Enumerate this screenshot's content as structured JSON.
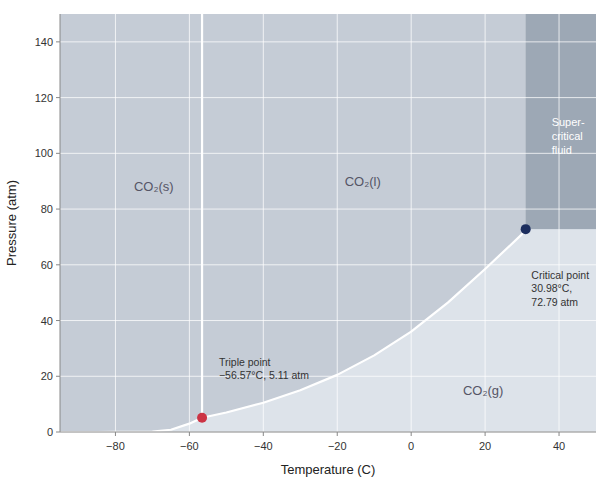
{
  "chart_data": {
    "type": "line",
    "xlabel": "Temperature (C)",
    "ylabel": "Pressure (atm)",
    "xlim": [
      -95,
      50
    ],
    "ylim": [
      0,
      150
    ],
    "xticks": [
      {
        "value": -80,
        "label": "−80"
      },
      {
        "value": -60,
        "label": "−60"
      },
      {
        "value": -40,
        "label": "−40"
      },
      {
        "value": -20,
        "label": "−20"
      },
      0,
      20,
      40
    ],
    "yticks": [
      0,
      20,
      40,
      60,
      80,
      100,
      120,
      140
    ],
    "grid": true,
    "series": [
      {
        "color": "#ffffff",
        "x": [
          -95,
          -90,
          -85,
          -80,
          -75,
          -70,
          -65,
          -60,
          -56.57
        ],
        "values": [
          0.0,
          0.001,
          0.004,
          0.012,
          0.04,
          0.15,
          0.8,
          3.0,
          5.11
        ]
      },
      {
        "color": "#ffffff",
        "x": [
          -56.57,
          -50,
          -40,
          -30,
          -20,
          -10,
          0,
          10,
          20,
          30,
          30.98
        ],
        "values": [
          5.11,
          7.0,
          10.5,
          15.0,
          20.5,
          27.5,
          36.0,
          46.5,
          58.5,
          71.0,
          72.79
        ]
      }
    ],
    "points": [
      {
        "x": -56.57,
        "y": 5.11,
        "color": "#cc3344",
        "label": "Triple point\n−56.57°C, 5.11 atm",
        "label_x": -52,
        "label_y": 18
      },
      {
        "x": 30.98,
        "y": 72.79,
        "color": "#1c2e5e",
        "label": "Critical point\n30.98°C,\n72.79 atm",
        "label_x": 32.5,
        "label_y": 58
      }
    ],
    "region_colors": {
      "solid_liquid": "#c5ccd6",
      "gas": "#dde3ea",
      "supercritical": "#9da8b5"
    },
    "region_labels": [
      {
        "text": "CO₂(s)",
        "x": -75,
        "y": 88,
        "color": "#555566"
      },
      {
        "text": "CO₂(l)",
        "x": -18,
        "y": 90,
        "color": "#555566"
      },
      {
        "text": "CO₂(g)",
        "x": 14,
        "y": 15,
        "color": "#555566"
      },
      {
        "text": "Super-\ncritical\nfluid",
        "x": 38,
        "y": 113,
        "color": "#ffffff"
      }
    ]
  }
}
